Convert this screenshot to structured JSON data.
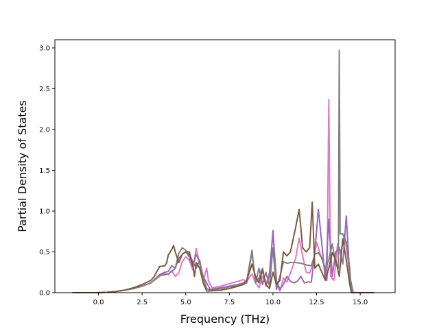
{
  "chart_data": {
    "type": "line",
    "xlabel": "Frequency (THz)",
    "ylabel": "Partial Density of States",
    "xlim": [
      -2.5,
      17.0
    ],
    "ylim": [
      0.0,
      3.1
    ],
    "x_ticks": [
      0.0,
      2.5,
      5.0,
      7.5,
      10.0,
      12.5,
      15.0
    ],
    "y_ticks": [
      0.0,
      0.5,
      1.0,
      1.5,
      2.0,
      2.5,
      3.0
    ],
    "x_tick_labels": [
      "0.0",
      "2.5",
      "5.0",
      "7.5",
      "10.0",
      "12.5",
      "15.0"
    ],
    "y_tick_labels": [
      "0.0",
      "0.5",
      "1.0",
      "1.5",
      "2.0",
      "2.5",
      "3.0"
    ],
    "grid": false,
    "legend": "none",
    "series": [
      {
        "color": "#e377c2",
        "points": [
          [
            -1.5,
            0
          ],
          [
            0,
            0
          ],
          [
            0.5,
            0.005
          ],
          [
            1.0,
            0.015
          ],
          [
            1.5,
            0.03
          ],
          [
            2.0,
            0.05
          ],
          [
            2.5,
            0.08
          ],
          [
            3.0,
            0.12
          ],
          [
            3.5,
            0.2
          ],
          [
            3.8,
            0.24
          ],
          [
            4.0,
            0.22
          ],
          [
            4.2,
            0.27
          ],
          [
            4.4,
            0.2
          ],
          [
            4.6,
            0.24
          ],
          [
            4.8,
            0.38
          ],
          [
            5.0,
            0.44
          ],
          [
            5.2,
            0.4
          ],
          [
            5.4,
            0.28
          ],
          [
            5.6,
            0.54
          ],
          [
            5.8,
            0.35
          ],
          [
            6.0,
            0.15
          ],
          [
            6.2,
            0.3
          ],
          [
            6.3,
            0.15
          ],
          [
            6.5,
            0.06
          ],
          [
            7.0,
            0.08
          ],
          [
            7.5,
            0.11
          ],
          [
            8.0,
            0.14
          ],
          [
            8.3,
            0.16
          ],
          [
            8.5,
            0.14
          ],
          [
            8.8,
            0.23
          ],
          [
            9.0,
            0.12
          ],
          [
            9.2,
            0.06
          ],
          [
            9.4,
            0.2
          ],
          [
            9.6,
            0.1
          ],
          [
            9.8,
            0.25
          ],
          [
            10.0,
            0.72
          ],
          [
            10.2,
            0.1
          ],
          [
            10.4,
            0.02
          ],
          [
            10.6,
            0.18
          ],
          [
            10.8,
            0.13
          ],
          [
            11.0,
            0.24
          ],
          [
            11.3,
            0.42
          ],
          [
            11.5,
            0.67
          ],
          [
            11.7,
            0.45
          ],
          [
            11.9,
            0.25
          ],
          [
            12.1,
            0.24
          ],
          [
            12.3,
            0.35
          ],
          [
            12.5,
            0.62
          ],
          [
            12.7,
            0.48
          ],
          [
            12.9,
            0.35
          ],
          [
            13.1,
            0.15
          ],
          [
            13.2,
            2.37
          ],
          [
            13.3,
            0.2
          ],
          [
            13.5,
            0.15
          ],
          [
            13.7,
            0.6
          ],
          [
            13.9,
            0.5
          ],
          [
            14.1,
            0.72
          ],
          [
            14.3,
            0.4
          ],
          [
            14.5,
            0.04
          ],
          [
            14.6,
            0
          ],
          [
            15.8,
            0
          ]
        ]
      },
      {
        "color": "#9467bd",
        "points": [
          [
            -1.5,
            0
          ],
          [
            0,
            0
          ],
          [
            0.5,
            0.005
          ],
          [
            1.0,
            0.015
          ],
          [
            1.5,
            0.03
          ],
          [
            2.0,
            0.05
          ],
          [
            2.5,
            0.08
          ],
          [
            3.0,
            0.12
          ],
          [
            3.5,
            0.22
          ],
          [
            3.8,
            0.25
          ],
          [
            4.0,
            0.26
          ],
          [
            4.2,
            0.33
          ],
          [
            4.4,
            0.3
          ],
          [
            4.6,
            0.42
          ],
          [
            4.8,
            0.47
          ],
          [
            5.0,
            0.5
          ],
          [
            5.2,
            0.44
          ],
          [
            5.4,
            0.32
          ],
          [
            5.6,
            0.47
          ],
          [
            5.8,
            0.38
          ],
          [
            6.0,
            0.2
          ],
          [
            6.2,
            0.12
          ],
          [
            6.4,
            0.04
          ],
          [
            7.0,
            0.06
          ],
          [
            7.5,
            0.08
          ],
          [
            8.0,
            0.1
          ],
          [
            8.3,
            0.12
          ],
          [
            8.5,
            0.15
          ],
          [
            8.8,
            0.52
          ],
          [
            9.0,
            0.12
          ],
          [
            9.2,
            0.18
          ],
          [
            9.4,
            0.3
          ],
          [
            9.6,
            0.08
          ],
          [
            9.8,
            0.22
          ],
          [
            10.0,
            0.76
          ],
          [
            10.2,
            0.15
          ],
          [
            10.4,
            0.04
          ],
          [
            10.6,
            0.1
          ],
          [
            10.8,
            0.2
          ],
          [
            11.0,
            0.14
          ],
          [
            11.2,
            0.12
          ],
          [
            11.4,
            0.14
          ],
          [
            11.6,
            0.2
          ],
          [
            11.8,
            0.12
          ],
          [
            12.0,
            0.13
          ],
          [
            12.2,
            0.13
          ],
          [
            12.4,
            0.5
          ],
          [
            12.6,
            1.02
          ],
          [
            12.8,
            0.6
          ],
          [
            13.0,
            0.15
          ],
          [
            13.2,
            0.9
          ],
          [
            13.4,
            0.2
          ],
          [
            13.6,
            0.5
          ],
          [
            13.8,
            0.55
          ],
          [
            14.0,
            0.35
          ],
          [
            14.2,
            0.94
          ],
          [
            14.4,
            0.2
          ],
          [
            14.6,
            0
          ],
          [
            15.8,
            0
          ]
        ]
      },
      {
        "color": "#7f7f7f",
        "points": [
          [
            -1.5,
            0
          ],
          [
            0,
            0
          ],
          [
            0.5,
            0.005
          ],
          [
            1.0,
            0.015
          ],
          [
            1.5,
            0.03
          ],
          [
            2.0,
            0.05
          ],
          [
            2.5,
            0.08
          ],
          [
            3.0,
            0.12
          ],
          [
            3.5,
            0.21
          ],
          [
            3.8,
            0.22
          ],
          [
            4.0,
            0.23
          ],
          [
            4.2,
            0.26
          ],
          [
            4.4,
            0.3
          ],
          [
            4.6,
            0.48
          ],
          [
            4.8,
            0.55
          ],
          [
            5.0,
            0.52
          ],
          [
            5.2,
            0.47
          ],
          [
            5.4,
            0.38
          ],
          [
            5.6,
            0.3
          ],
          [
            5.8,
            0.4
          ],
          [
            6.0,
            0.18
          ],
          [
            6.2,
            0.05
          ],
          [
            6.4,
            0.03
          ],
          [
            7.0,
            0.05
          ],
          [
            7.5,
            0.07
          ],
          [
            8.0,
            0.09
          ],
          [
            8.3,
            0.1
          ],
          [
            8.5,
            0.12
          ],
          [
            8.8,
            0.5
          ],
          [
            9.0,
            0.12
          ],
          [
            9.2,
            0.3
          ],
          [
            9.4,
            0.1
          ],
          [
            9.6,
            0.25
          ],
          [
            9.8,
            0.08
          ],
          [
            10.0,
            0.55
          ],
          [
            10.2,
            0.04
          ],
          [
            10.4,
            0.2
          ],
          [
            10.6,
            0.38
          ],
          [
            10.8,
            0.36
          ],
          [
            11.0,
            0.37
          ],
          [
            11.3,
            0.37
          ],
          [
            11.6,
            0.36
          ],
          [
            11.9,
            0.34
          ],
          [
            12.2,
            0.33
          ],
          [
            12.4,
            0.47
          ],
          [
            12.6,
            0.49
          ],
          [
            12.8,
            0.42
          ],
          [
            13.0,
            0.3
          ],
          [
            13.2,
            0.4
          ],
          [
            13.4,
            0.6
          ],
          [
            13.6,
            0.35
          ],
          [
            13.75,
            0.3
          ],
          [
            13.8,
            2.97
          ],
          [
            13.85,
            0.72
          ],
          [
            14.0,
            0.72
          ],
          [
            14.2,
            0.62
          ],
          [
            14.4,
            0.3
          ],
          [
            14.5,
            0
          ],
          [
            15.8,
            0
          ]
        ]
      },
      {
        "color": "#7b5a3a",
        "points": [
          [
            -1.5,
            0
          ],
          [
            0,
            0
          ],
          [
            0.5,
            0.005
          ],
          [
            1.0,
            0.015
          ],
          [
            1.5,
            0.03
          ],
          [
            2.0,
            0.06
          ],
          [
            2.5,
            0.1
          ],
          [
            3.0,
            0.15
          ],
          [
            3.2,
            0.2
          ],
          [
            3.5,
            0.32
          ],
          [
            3.8,
            0.33
          ],
          [
            3.9,
            0.36
          ],
          [
            4.0,
            0.46
          ],
          [
            4.2,
            0.53
          ],
          [
            4.3,
            0.58
          ],
          [
            4.4,
            0.5
          ],
          [
            4.6,
            0.37
          ],
          [
            4.8,
            0.47
          ],
          [
            5.0,
            0.5
          ],
          [
            5.2,
            0.5
          ],
          [
            5.4,
            0.35
          ],
          [
            5.5,
            0.2
          ],
          [
            5.6,
            0.37
          ],
          [
            5.8,
            0.3
          ],
          [
            6.0,
            0.12
          ],
          [
            6.2,
            0.02
          ],
          [
            7.0,
            0.03
          ],
          [
            7.5,
            0.05
          ],
          [
            8.0,
            0.08
          ],
          [
            8.3,
            0.1
          ],
          [
            8.5,
            0.15
          ],
          [
            8.8,
            0.35
          ],
          [
            9.0,
            0.2
          ],
          [
            9.2,
            0.12
          ],
          [
            9.4,
            0.28
          ],
          [
            9.6,
            0.1
          ],
          [
            9.8,
            0.05
          ],
          [
            10.0,
            0.25
          ],
          [
            10.2,
            0.1
          ],
          [
            10.4,
            0.15
          ],
          [
            10.6,
            0.5
          ],
          [
            10.8,
            0.45
          ],
          [
            11.0,
            0.5
          ],
          [
            11.3,
            0.8
          ],
          [
            11.5,
            1.02
          ],
          [
            11.7,
            0.55
          ],
          [
            11.9,
            0.5
          ],
          [
            12.1,
            0.55
          ],
          [
            12.25,
            1.11
          ],
          [
            12.4,
            0.3
          ],
          [
            12.6,
            0.35
          ],
          [
            12.8,
            0.25
          ],
          [
            13.0,
            0.15
          ],
          [
            13.2,
            0.3
          ],
          [
            13.4,
            0.49
          ],
          [
            13.6,
            0.4
          ],
          [
            13.8,
            0.2
          ],
          [
            14.0,
            0.66
          ],
          [
            14.2,
            0.4
          ],
          [
            14.4,
            0.1
          ],
          [
            14.5,
            0
          ],
          [
            15.8,
            0
          ]
        ]
      }
    ]
  }
}
